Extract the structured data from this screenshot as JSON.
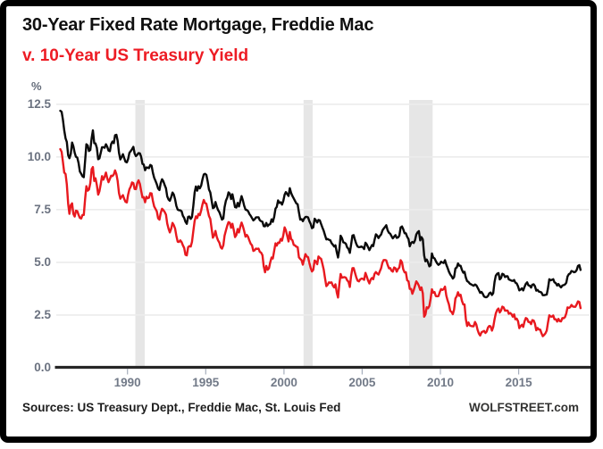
{
  "title": {
    "line1": "30-Year Fixed Rate Mortgage, Freddie Mac",
    "line2": "v. 10-Year US Treasury Yield",
    "line1_color": "#101010",
    "line2_color": "#ed1c24"
  },
  "footer": {
    "sources": "Sources: US Treasury Dept., Freddie Mac, St. Louis Fed",
    "brand": "WOLFSTREET.com"
  },
  "chart_data": {
    "type": "line",
    "title": "30-Year Fixed Rate Mortgage, Freddie Mac v. 10-Year US Treasury Yield",
    "unit_label": "%",
    "ylabel": "%",
    "ylim": [
      0,
      12.5
    ],
    "yticks": [
      0,
      2.5,
      5,
      7.5,
      10,
      12.5
    ],
    "ytick_labels": [
      "0.0",
      "2.5",
      "5.0",
      "7.5",
      "10.0",
      "12.5"
    ],
    "xticks": [
      1990,
      1995,
      2000,
      2005,
      2010,
      2015
    ],
    "xlim": [
      1985.6,
      2019.5
    ],
    "x_start": 1985.708,
    "x_step": 0.083333,
    "grid": "horizontal",
    "grid_color": "#ececec",
    "axis_color": "#262626",
    "band_color": "#e6e6e6",
    "recession_bands": [
      [
        1990.5,
        1991.1
      ],
      [
        2001.25,
        2001.83
      ],
      [
        2008.0,
        2009.5
      ]
    ],
    "legend_position": "none",
    "series": [
      {
        "id": "mortgage",
        "name": "30-Year Fixed Rate Mortgage, Freddie Mac",
        "color": "#0a0a0a",
        "values": [
          12.19,
          12.14,
          11.78,
          11.26,
          10.88,
          10.71,
          10.08,
          9.94,
          10.14,
          10.68,
          10.51,
          10.2,
          10.01,
          9.97,
          9.7,
          9.31,
          9.2,
          9.08,
          9.04,
          9.83,
          10.6,
          10.54,
          10.28,
          10.33,
          10.89,
          11.26,
          10.65,
          10.64,
          10.43,
          9.89,
          9.93,
          10.2,
          10.46,
          10.46,
          10.43,
          10.6,
          10.48,
          10.3,
          10.27,
          10.61,
          10.73,
          10.65,
          11.03,
          11.05,
          10.77,
          10.2,
          9.88,
          9.99,
          10.13,
          9.95,
          9.77,
          9.74,
          9.9,
          10.2,
          10.27,
          10.37,
          10.48,
          10.16,
          10.04,
          10.1,
          10.18,
          10.17,
          10.01,
          9.67,
          9.64,
          9.37,
          9.5,
          9.49,
          9.47,
          9.62,
          9.58,
          9.24,
          9.01,
          8.86,
          8.71,
          8.5,
          8.43,
          8.76,
          8.94,
          8.85,
          8.67,
          8.51,
          8.13,
          7.98,
          7.92,
          8.09,
          8.31,
          8.22,
          7.99,
          7.68,
          7.5,
          7.47,
          7.47,
          7.42,
          7.21,
          7.11,
          6.92,
          6.83,
          7.16,
          7.17,
          7.06,
          7.15,
          7.68,
          8.32,
          8.6,
          8.4,
          8.61,
          8.51,
          8.64,
          8.93,
          9.17,
          9.2,
          9.15,
          8.83,
          8.46,
          8.32,
          7.96,
          7.57,
          7.61,
          7.86,
          7.64,
          7.48,
          7.38,
          7.2,
          7.03,
          7.08,
          7.62,
          7.93,
          8.07,
          8.32,
          8.25,
          8.0,
          8.23,
          7.92,
          7.62,
          7.6,
          7.82,
          7.65,
          7.9,
          8.14,
          7.94,
          7.69,
          7.5,
          7.48,
          7.43,
          7.29,
          7.21,
          7.1,
          6.99,
          7.04,
          7.13,
          7.14,
          7.14,
          7.0,
          6.95,
          6.92,
          6.72,
          6.71,
          6.87,
          6.72,
          6.79,
          6.81,
          7.04,
          6.92,
          7.15,
          7.55,
          7.63,
          7.94,
          7.82,
          7.85,
          7.74,
          7.91,
          8.21,
          8.33,
          8.24,
          8.15,
          8.52,
          8.29,
          8.15,
          8.03,
          7.91,
          7.8,
          7.75,
          7.38,
          7.03,
          7.05,
          6.95,
          7.08,
          7.15,
          7.16,
          7.13,
          6.95,
          6.82,
          6.62,
          6.66,
          7.07,
          7.0,
          6.89,
          7.01,
          6.99,
          6.81,
          6.65,
          6.49,
          6.29,
          6.09,
          6.11,
          6.07,
          6.05,
          5.92,
          5.84,
          5.75,
          5.81,
          5.48,
          5.23,
          5.63,
          6.26,
          6.15,
          5.95,
          5.93,
          5.88,
          5.71,
          5.64,
          5.45,
          5.83,
          6.27,
          6.29,
          6.06,
          5.87,
          5.75,
          5.72,
          5.73,
          5.75,
          5.71,
          5.63,
          5.93,
          5.86,
          5.72,
          5.58,
          5.7,
          5.82,
          5.77,
          6.07,
          6.33,
          6.27,
          6.15,
          6.25,
          6.32,
          6.51,
          6.6,
          6.68,
          6.76,
          6.52,
          6.4,
          6.36,
          6.24,
          6.14,
          6.22,
          6.29,
          6.16,
          6.18,
          6.26,
          6.66,
          6.7,
          6.57,
          6.38,
          6.38,
          6.21,
          6.1,
          5.76,
          5.92,
          5.97,
          5.92,
          6.04,
          6.32,
          6.43,
          6.48,
          6.04,
          6.2,
          6.09,
          5.33,
          5.05,
          5.13,
          5.0,
          4.81,
          4.86,
          5.42,
          5.22,
          5.19,
          5.06,
          4.95,
          4.88,
          4.93,
          5.03,
          4.99,
          4.97,
          5.1,
          4.89,
          4.74,
          4.56,
          4.43,
          4.35,
          4.23,
          4.3,
          4.71,
          4.76,
          4.95,
          4.84,
          4.84,
          4.64,
          4.51,
          4.55,
          4.27,
          4.11,
          4.07,
          3.99,
          3.96,
          3.92,
          3.89,
          3.95,
          3.91,
          3.8,
          3.68,
          3.55,
          3.6,
          3.5,
          3.38,
          3.35,
          3.35,
          3.41,
          3.53,
          3.57,
          3.45,
          3.54,
          4.07,
          4.37,
          4.46,
          4.49,
          4.19,
          4.26,
          4.46,
          4.43,
          4.3,
          4.34,
          4.34,
          4.19,
          4.16,
          4.13,
          4.12,
          4.16,
          4.04,
          4.0,
          3.86,
          3.67,
          3.71,
          3.77,
          3.67,
          3.84,
          3.98,
          4.05,
          3.91,
          3.89,
          3.8,
          3.94,
          3.96,
          3.87,
          3.66,
          3.69,
          3.61,
          3.6,
          3.57,
          3.44,
          3.44,
          3.46,
          3.47,
          3.77,
          4.2,
          4.15,
          4.17,
          4.2,
          4.05,
          4.01,
          3.9,
          3.97,
          3.88,
          3.81,
          3.9,
          3.92,
          3.95,
          4.03,
          4.33,
          4.44,
          4.47,
          4.59,
          4.57,
          4.53,
          4.55,
          4.63,
          4.83,
          4.87,
          4.64
        ]
      },
      {
        "id": "treasury",
        "name": "10-Year US Treasury Yield",
        "color": "#e8191f",
        "values": [
          10.37,
          10.24,
          9.78,
          9.26,
          9.19,
          8.7,
          7.78,
          7.3,
          7.71,
          7.8,
          7.3,
          7.17,
          7.45,
          7.43,
          7.25,
          7.11,
          7.08,
          7.25,
          7.25,
          8.02,
          8.61,
          8.4,
          8.45,
          8.76,
          9.42,
          9.52,
          8.86,
          8.99,
          8.67,
          8.21,
          8.37,
          8.72,
          9.09,
          8.92,
          9.06,
          9.26,
          8.98,
          8.8,
          8.96,
          9.11,
          9.09,
          9.17,
          9.36,
          9.18,
          8.86,
          8.28,
          8.02,
          8.11,
          8.19,
          8.01,
          7.87,
          7.84,
          8.21,
          8.47,
          8.59,
          8.79,
          8.76,
          8.48,
          8.47,
          8.75,
          8.89,
          8.72,
          8.39,
          8.08,
          8.09,
          7.85,
          8.11,
          8.04,
          8.07,
          8.28,
          8.27,
          7.9,
          7.65,
          7.53,
          7.42,
          7.09,
          7.03,
          7.34,
          7.54,
          7.48,
          7.39,
          7.26,
          6.84,
          6.59,
          6.42,
          6.59,
          6.87,
          6.77,
          6.6,
          6.26,
          5.98,
          5.97,
          6.04,
          5.96,
          5.81,
          5.68,
          5.36,
          5.33,
          5.72,
          5.77,
          5.75,
          5.97,
          6.48,
          6.97,
          7.18,
          7.1,
          7.3,
          7.24,
          7.46,
          7.74,
          7.96,
          7.81,
          7.78,
          7.47,
          7.2,
          7.06,
          6.63,
          6.17,
          6.28,
          6.49,
          6.2,
          6.04,
          5.93,
          5.71,
          5.65,
          5.81,
          6.27,
          6.51,
          6.74,
          6.91,
          6.87,
          6.64,
          6.83,
          6.53,
          6.2,
          6.3,
          6.58,
          6.42,
          6.69,
          6.89,
          6.71,
          6.49,
          6.22,
          6.3,
          6.21,
          6.03,
          5.88,
          5.81,
          5.54,
          5.57,
          5.65,
          5.64,
          5.65,
          5.5,
          5.46,
          5.34,
          4.81,
          4.53,
          4.83,
          4.65,
          4.72,
          5.0,
          5.23,
          5.18,
          5.54,
          5.9,
          5.79,
          5.94,
          5.92,
          6.11,
          6.03,
          6.28,
          6.66,
          6.52,
          6.26,
          5.99,
          6.44,
          6.1,
          6.05,
          5.83,
          5.8,
          5.74,
          5.72,
          5.24,
          5.16,
          5.1,
          4.89,
          5.14,
          5.39,
          5.28,
          5.24,
          4.97,
          4.73,
          4.57,
          4.65,
          5.09,
          5.04,
          4.91,
          5.28,
          5.21,
          5.16,
          4.93,
          4.65,
          4.26,
          3.87,
          3.94,
          4.05,
          4.03,
          4.05,
          3.9,
          3.81,
          3.96,
          3.57,
          3.33,
          3.98,
          4.45,
          4.27,
          4.29,
          4.3,
          4.27,
          4.15,
          4.08,
          3.83,
          4.35,
          4.72,
          4.73,
          4.5,
          4.28,
          4.13,
          4.1,
          4.19,
          4.23,
          4.22,
          4.17,
          4.5,
          4.34,
          4.14,
          4.0,
          4.18,
          4.26,
          4.2,
          4.46,
          4.54,
          4.47,
          4.42,
          4.57,
          4.72,
          4.99,
          5.11,
          5.11,
          5.09,
          4.88,
          4.72,
          4.73,
          4.6,
          4.56,
          4.76,
          4.72,
          4.56,
          4.69,
          4.75,
          5.1,
          5.0,
          4.67,
          4.52,
          4.53,
          4.15,
          4.1,
          3.74,
          3.74,
          3.51,
          3.68,
          3.88,
          4.1,
          4.01,
          3.89,
          3.69,
          3.81,
          3.53,
          2.42,
          2.52,
          2.87,
          2.82,
          2.93,
          3.29,
          3.72,
          3.56,
          3.59,
          3.4,
          3.39,
          3.4,
          3.59,
          3.73,
          3.69,
          3.73,
          3.85,
          3.42,
          3.2,
          3.01,
          2.7,
          2.65,
          2.54,
          2.76,
          3.29,
          3.39,
          3.58,
          3.41,
          3.46,
          3.17,
          3.0,
          3.0,
          2.3,
          1.98,
          2.15,
          2.01,
          1.98,
          1.97,
          1.97,
          2.17,
          2.05,
          1.8,
          1.62,
          1.53,
          1.68,
          1.72,
          1.75,
          1.65,
          1.72,
          1.91,
          1.98,
          1.96,
          1.76,
          1.93,
          2.3,
          2.58,
          2.74,
          2.81,
          2.62,
          2.72,
          2.9,
          2.86,
          2.71,
          2.72,
          2.71,
          2.56,
          2.6,
          2.54,
          2.42,
          2.53,
          2.3,
          2.33,
          2.21,
          1.88,
          1.98,
          2.04,
          1.94,
          2.2,
          2.36,
          2.32,
          2.17,
          2.17,
          2.07,
          2.26,
          2.24,
          2.09,
          1.78,
          1.89,
          1.81,
          1.81,
          1.64,
          1.5,
          1.56,
          1.63,
          1.76,
          2.14,
          2.49,
          2.43,
          2.42,
          2.48,
          2.3,
          2.3,
          2.19,
          2.32,
          2.21,
          2.2,
          2.36,
          2.35,
          2.4,
          2.58,
          2.86,
          2.84,
          2.87,
          2.98,
          2.91,
          2.89,
          2.89,
          3.0,
          3.15,
          3.12,
          2.83
        ]
      }
    ]
  }
}
